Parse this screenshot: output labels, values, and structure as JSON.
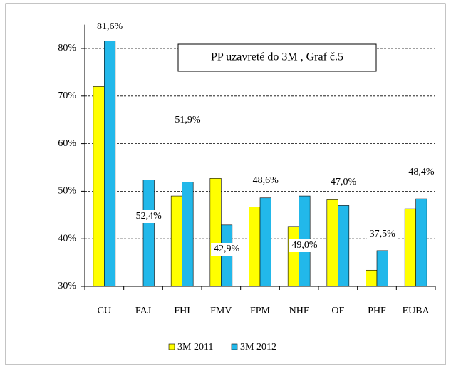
{
  "chart_data": {
    "type": "bar",
    "title": "PP uzavreté do 3M , Graf č.5",
    "categories": [
      "CU",
      "FAJ",
      "FHI",
      "FMV",
      "FPM",
      "NHF",
      "OF",
      "PHF",
      "EUBA"
    ],
    "series": [
      {
        "name": "3M 2011",
        "color": "#ffff00",
        "values": [
          72.0,
          30.0,
          49.0,
          52.7,
          46.7,
          42.6,
          48.2,
          33.4,
          46.3
        ]
      },
      {
        "name": "3M 2012",
        "color": "#22b8ea",
        "values": [
          81.6,
          52.4,
          51.9,
          42.9,
          48.6,
          49.0,
          47.0,
          37.5,
          48.4
        ],
        "value_labels": [
          "81,6%",
          "52,4%",
          "51,9%",
          "42,9%",
          "48,6%",
          "49,0%",
          "47,0%",
          "37,5%",
          "48,4%"
        ]
      }
    ],
    "ylim": [
      30,
      85
    ],
    "yticks": [
      {
        "value": 30,
        "label": "30%"
      },
      {
        "value": 40,
        "label": "40%"
      },
      {
        "value": 50,
        "label": "50%"
      },
      {
        "value": 60,
        "label": "60%"
      },
      {
        "value": 70,
        "label": "70%"
      },
      {
        "value": 80,
        "label": "80%"
      }
    ],
    "grid": true,
    "legend": "bottom"
  }
}
